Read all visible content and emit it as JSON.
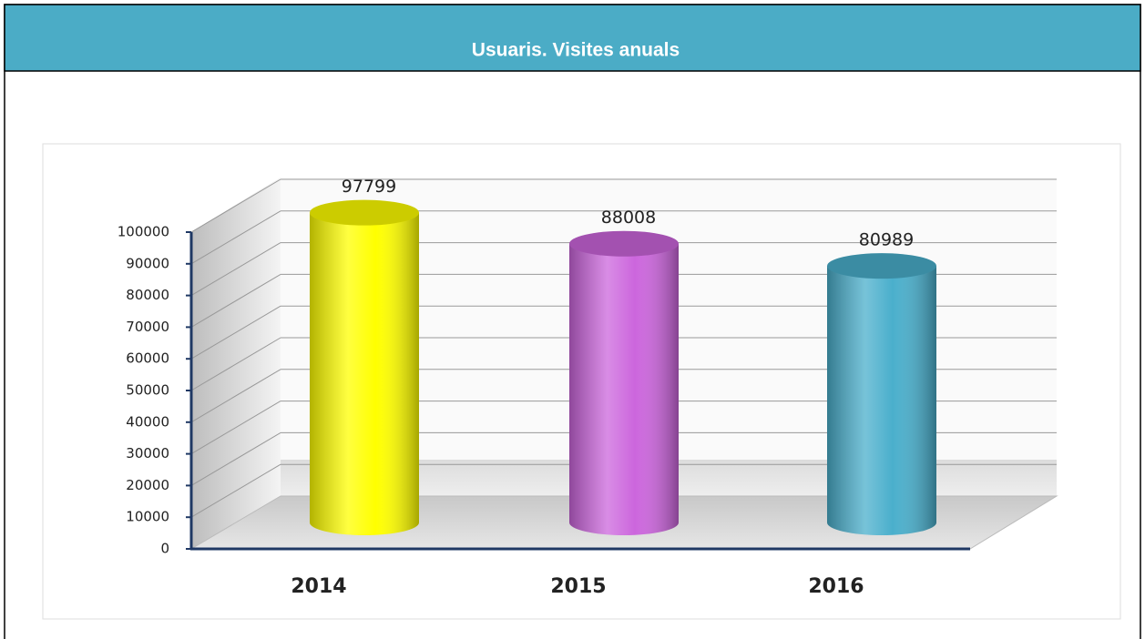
{
  "chart_data": {
    "type": "bar",
    "title": "Usuaris. Visites anuals",
    "categories": [
      "2014",
      "2015",
      "2016"
    ],
    "values": [
      97799,
      88008,
      80989
    ],
    "colors": [
      "#ffff00",
      "#cc66dd",
      "#4aafcc"
    ],
    "ylim": [
      0,
      100000
    ],
    "yticks": [
      0,
      10000,
      20000,
      30000,
      40000,
      50000,
      60000,
      70000,
      80000,
      90000,
      100000
    ],
    "grid": true
  }
}
